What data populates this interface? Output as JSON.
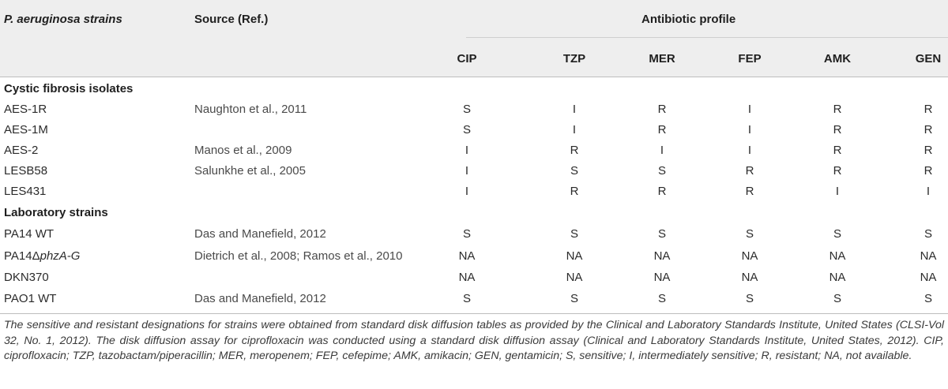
{
  "headers": {
    "strain": "P. aeruginosa strains",
    "source": "Source (Ref.)",
    "profile": "Antibiotic profile",
    "antibiotics": [
      "CIP",
      "TZP",
      "MER",
      "FEP",
      "AMK",
      "GEN"
    ]
  },
  "sections": [
    {
      "title": "Cystic fibrosis isolates",
      "rows": [
        {
          "strain": "AES-1R",
          "source": "Naughton et al., 2011",
          "values": [
            "S",
            "I",
            "R",
            "I",
            "R",
            "R"
          ]
        },
        {
          "strain": "AES-1M",
          "source": "",
          "values": [
            "S",
            "I",
            "R",
            "I",
            "R",
            "R"
          ]
        },
        {
          "strain": "AES-2",
          "source": "Manos et al., 2009",
          "values": [
            "I",
            "R",
            "I",
            "I",
            "R",
            "R"
          ]
        },
        {
          "strain": "LESB58",
          "source": "Salunkhe et al., 2005",
          "values": [
            "I",
            "S",
            "S",
            "R",
            "R",
            "R"
          ]
        },
        {
          "strain": "LES431",
          "source": "",
          "values": [
            "I",
            "R",
            "R",
            "R",
            "I",
            "I"
          ]
        }
      ]
    },
    {
      "title": "Laboratory strains",
      "rows": [
        {
          "strain": "PA14 WT",
          "source": "Das and Manefield, 2012",
          "values": [
            "S",
            "S",
            "S",
            "S",
            "S",
            "S"
          ]
        },
        {
          "strain_prefix": "PA14Δ",
          "strain_italic": "phzA-G",
          "source": "Dietrich et al., 2008; Ramos et al., 2010",
          "values": [
            "NA",
            "NA",
            "NA",
            "NA",
            "NA",
            "NA"
          ]
        },
        {
          "strain": "DKN370",
          "source": "",
          "values": [
            "NA",
            "NA",
            "NA",
            "NA",
            "NA",
            "NA"
          ]
        },
        {
          "strain": "PAO1 WT",
          "source": "Das and Manefield, 2012",
          "values": [
            "S",
            "S",
            "S",
            "S",
            "S",
            "S"
          ]
        }
      ]
    }
  ],
  "footnote": "The sensitive and resistant designations for strains were obtained from standard disk diffusion tables as provided by the Clinical and Laboratory Standards Institute, United States (CLSI-Vol 32, No. 1, 2012). The disk diffusion assay for ciprofloxacin was conducted using a standard disk diffusion assay (Clinical and Laboratory Standards Institute, United States, 2012). CIP, ciprofloxacin; TZP, tazobactam/piperacillin; MER, meropenem; FEP, cefepime; AMK, amikacin; GEN, gentamicin; S, sensitive; I, intermediately sensitive; R, resistant; NA, not available."
}
